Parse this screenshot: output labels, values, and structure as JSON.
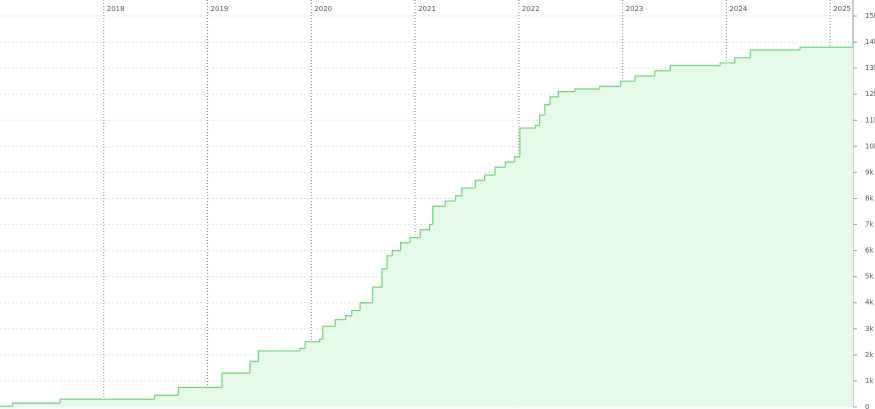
{
  "chart_data": {
    "type": "step-area",
    "color": "#6fd67a",
    "fill": "#e6f8e8",
    "grid": true,
    "y_axis_side": "right",
    "x": [
      2017.0,
      2017.12,
      2017.58,
      2018.49,
      2018.72,
      2019.14,
      2019.41,
      2019.49,
      2019.89,
      2019.94,
      2020.08,
      2020.11,
      2020.23,
      2020.33,
      2020.39,
      2020.47,
      2020.59,
      2020.68,
      2020.73,
      2020.78,
      2020.86,
      2020.95,
      2021.05,
      2021.14,
      2021.17,
      2021.29,
      2021.39,
      2021.45,
      2021.58,
      2021.67,
      2021.77,
      2021.87,
      2021.96,
      2022.01,
      2022.16,
      2022.2,
      2022.25,
      2022.3,
      2022.38,
      2022.54,
      2022.78,
      2022.98,
      2023.12,
      2023.31,
      2023.46,
      2023.94,
      2024.08,
      2024.23,
      2024.71,
      2025.19
    ],
    "values": [
      30,
      150,
      300,
      450,
      750,
      1300,
      1750,
      2150,
      2250,
      2500,
      2600,
      3100,
      3350,
      3500,
      3700,
      4000,
      4600,
      5300,
      5800,
      6000,
      6300,
      6500,
      6800,
      7000,
      7700,
      7900,
      8100,
      8400,
      8700,
      8900,
      9200,
      9400,
      9600,
      10700,
      10800,
      11200,
      11600,
      11900,
      12100,
      12200,
      12300,
      12500,
      12700,
      12900,
      13100,
      13200,
      13400,
      13700,
      13800,
      13800
    ],
    "xlim": [
      2017.0,
      2025.22
    ],
    "xticks": [
      2018,
      2019,
      2020,
      2021,
      2022,
      2023,
      2024,
      2025
    ],
    "ylim": [
      0,
      15000
    ],
    "yticks": [
      0,
      {
        "value": 1000,
        "label": "1k"
      },
      {
        "value": 2000,
        "label": "2k"
      },
      {
        "value": 3000,
        "label": "3k"
      },
      {
        "value": 4000,
        "label": "4k"
      },
      {
        "value": 5000,
        "label": "5k"
      },
      {
        "value": 6000,
        "label": "6k"
      },
      {
        "value": 7000,
        "label": "7k"
      },
      {
        "value": 8000,
        "label": "8k"
      },
      {
        "value": 9000,
        "label": "9k"
      },
      {
        "value": 10000,
        "label": "10k"
      },
      {
        "value": 11000,
        "label": "11k"
      },
      {
        "value": 12000,
        "label": "12k"
      },
      {
        "value": 13000,
        "label": "13k"
      },
      {
        "value": 14000,
        "label": "14k"
      },
      {
        "value": 15000,
        "label": "15k"
      }
    ]
  }
}
